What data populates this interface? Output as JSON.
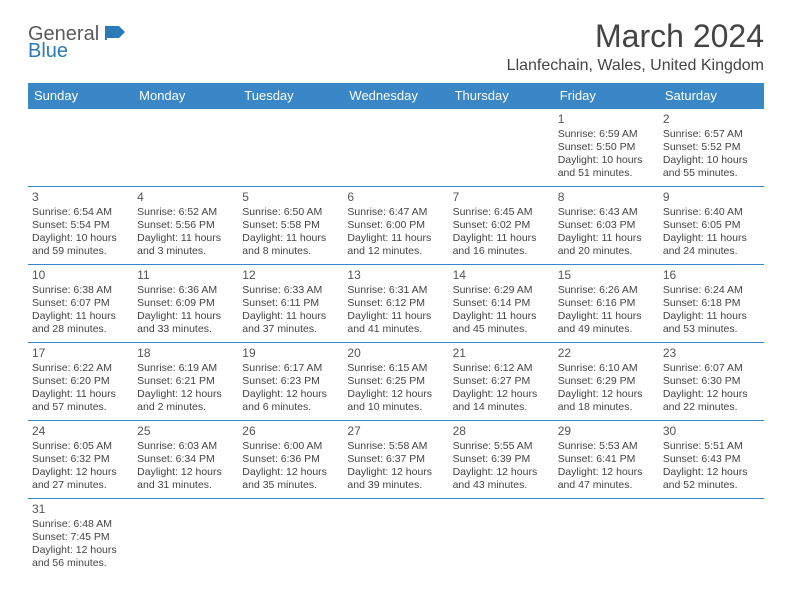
{
  "logo": {
    "line1": "General",
    "line2": "Blue"
  },
  "title": "March 2024",
  "location": "Llanfechain, Wales, United Kingdom",
  "colors": {
    "header_bg": "#3a87c8",
    "header_text": "#ffffff",
    "border": "#3a87c8",
    "body_text": "#444444",
    "logo_gray": "#5a5a5a",
    "logo_blue": "#2a7ab8"
  },
  "weekdays": [
    "Sunday",
    "Monday",
    "Tuesday",
    "Wednesday",
    "Thursday",
    "Friday",
    "Saturday"
  ],
  "weeks": [
    [
      null,
      null,
      null,
      null,
      null,
      {
        "day": "1",
        "sunrise": "Sunrise: 6:59 AM",
        "sunset": "Sunset: 5:50 PM",
        "daylight": "Daylight: 10 hours and 51 minutes."
      },
      {
        "day": "2",
        "sunrise": "Sunrise: 6:57 AM",
        "sunset": "Sunset: 5:52 PM",
        "daylight": "Daylight: 10 hours and 55 minutes."
      }
    ],
    [
      {
        "day": "3",
        "sunrise": "Sunrise: 6:54 AM",
        "sunset": "Sunset: 5:54 PM",
        "daylight": "Daylight: 10 hours and 59 minutes."
      },
      {
        "day": "4",
        "sunrise": "Sunrise: 6:52 AM",
        "sunset": "Sunset: 5:56 PM",
        "daylight": "Daylight: 11 hours and 3 minutes."
      },
      {
        "day": "5",
        "sunrise": "Sunrise: 6:50 AM",
        "sunset": "Sunset: 5:58 PM",
        "daylight": "Daylight: 11 hours and 8 minutes."
      },
      {
        "day": "6",
        "sunrise": "Sunrise: 6:47 AM",
        "sunset": "Sunset: 6:00 PM",
        "daylight": "Daylight: 11 hours and 12 minutes."
      },
      {
        "day": "7",
        "sunrise": "Sunrise: 6:45 AM",
        "sunset": "Sunset: 6:02 PM",
        "daylight": "Daylight: 11 hours and 16 minutes."
      },
      {
        "day": "8",
        "sunrise": "Sunrise: 6:43 AM",
        "sunset": "Sunset: 6:03 PM",
        "daylight": "Daylight: 11 hours and 20 minutes."
      },
      {
        "day": "9",
        "sunrise": "Sunrise: 6:40 AM",
        "sunset": "Sunset: 6:05 PM",
        "daylight": "Daylight: 11 hours and 24 minutes."
      }
    ],
    [
      {
        "day": "10",
        "sunrise": "Sunrise: 6:38 AM",
        "sunset": "Sunset: 6:07 PM",
        "daylight": "Daylight: 11 hours and 28 minutes."
      },
      {
        "day": "11",
        "sunrise": "Sunrise: 6:36 AM",
        "sunset": "Sunset: 6:09 PM",
        "daylight": "Daylight: 11 hours and 33 minutes."
      },
      {
        "day": "12",
        "sunrise": "Sunrise: 6:33 AM",
        "sunset": "Sunset: 6:11 PM",
        "daylight": "Daylight: 11 hours and 37 minutes."
      },
      {
        "day": "13",
        "sunrise": "Sunrise: 6:31 AM",
        "sunset": "Sunset: 6:12 PM",
        "daylight": "Daylight: 11 hours and 41 minutes."
      },
      {
        "day": "14",
        "sunrise": "Sunrise: 6:29 AM",
        "sunset": "Sunset: 6:14 PM",
        "daylight": "Daylight: 11 hours and 45 minutes."
      },
      {
        "day": "15",
        "sunrise": "Sunrise: 6:26 AM",
        "sunset": "Sunset: 6:16 PM",
        "daylight": "Daylight: 11 hours and 49 minutes."
      },
      {
        "day": "16",
        "sunrise": "Sunrise: 6:24 AM",
        "sunset": "Sunset: 6:18 PM",
        "daylight": "Daylight: 11 hours and 53 minutes."
      }
    ],
    [
      {
        "day": "17",
        "sunrise": "Sunrise: 6:22 AM",
        "sunset": "Sunset: 6:20 PM",
        "daylight": "Daylight: 11 hours and 57 minutes."
      },
      {
        "day": "18",
        "sunrise": "Sunrise: 6:19 AM",
        "sunset": "Sunset: 6:21 PM",
        "daylight": "Daylight: 12 hours and 2 minutes."
      },
      {
        "day": "19",
        "sunrise": "Sunrise: 6:17 AM",
        "sunset": "Sunset: 6:23 PM",
        "daylight": "Daylight: 12 hours and 6 minutes."
      },
      {
        "day": "20",
        "sunrise": "Sunrise: 6:15 AM",
        "sunset": "Sunset: 6:25 PM",
        "daylight": "Daylight: 12 hours and 10 minutes."
      },
      {
        "day": "21",
        "sunrise": "Sunrise: 6:12 AM",
        "sunset": "Sunset: 6:27 PM",
        "daylight": "Daylight: 12 hours and 14 minutes."
      },
      {
        "day": "22",
        "sunrise": "Sunrise: 6:10 AM",
        "sunset": "Sunset: 6:29 PM",
        "daylight": "Daylight: 12 hours and 18 minutes."
      },
      {
        "day": "23",
        "sunrise": "Sunrise: 6:07 AM",
        "sunset": "Sunset: 6:30 PM",
        "daylight": "Daylight: 12 hours and 22 minutes."
      }
    ],
    [
      {
        "day": "24",
        "sunrise": "Sunrise: 6:05 AM",
        "sunset": "Sunset: 6:32 PM",
        "daylight": "Daylight: 12 hours and 27 minutes."
      },
      {
        "day": "25",
        "sunrise": "Sunrise: 6:03 AM",
        "sunset": "Sunset: 6:34 PM",
        "daylight": "Daylight: 12 hours and 31 minutes."
      },
      {
        "day": "26",
        "sunrise": "Sunrise: 6:00 AM",
        "sunset": "Sunset: 6:36 PM",
        "daylight": "Daylight: 12 hours and 35 minutes."
      },
      {
        "day": "27",
        "sunrise": "Sunrise: 5:58 AM",
        "sunset": "Sunset: 6:37 PM",
        "daylight": "Daylight: 12 hours and 39 minutes."
      },
      {
        "day": "28",
        "sunrise": "Sunrise: 5:55 AM",
        "sunset": "Sunset: 6:39 PM",
        "daylight": "Daylight: 12 hours and 43 minutes."
      },
      {
        "day": "29",
        "sunrise": "Sunrise: 5:53 AM",
        "sunset": "Sunset: 6:41 PM",
        "daylight": "Daylight: 12 hours and 47 minutes."
      },
      {
        "day": "30",
        "sunrise": "Sunrise: 5:51 AM",
        "sunset": "Sunset: 6:43 PM",
        "daylight": "Daylight: 12 hours and 52 minutes."
      }
    ],
    [
      {
        "day": "31",
        "sunrise": "Sunrise: 6:48 AM",
        "sunset": "Sunset: 7:45 PM",
        "daylight": "Daylight: 12 hours and 56 minutes."
      },
      null,
      null,
      null,
      null,
      null,
      null
    ]
  ]
}
